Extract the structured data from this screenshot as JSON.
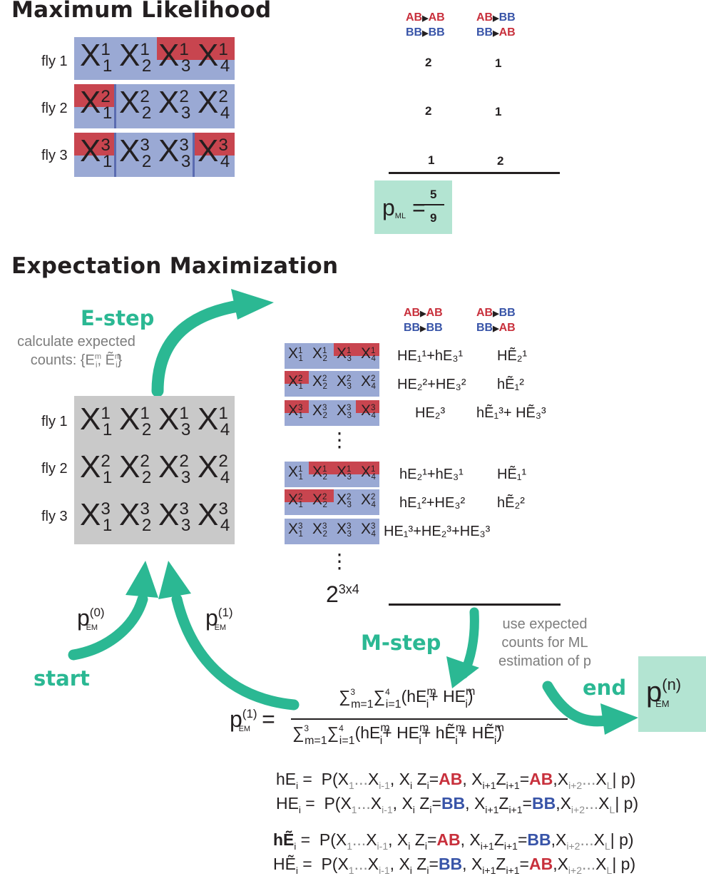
{
  "ml": {
    "title": "Maximum Likelihood",
    "flies": [
      "fly 1",
      "fly 2",
      "fly 3"
    ],
    "header_col1": {
      "line1_a": "AB",
      "line1_b": "AB",
      "line2_a": "BB",
      "line2_b": "BB"
    },
    "header_col2": {
      "line1_a": "AB",
      "line1_b": "BB",
      "line2_a": "BB",
      "line2_b": "AB"
    },
    "counts": [
      [
        "2",
        "1"
      ],
      [
        "2",
        "1"
      ],
      [
        "1",
        "2"
      ]
    ],
    "p_label": "p",
    "p_sub": "ML",
    "numerator": "5",
    "denominator": "9"
  },
  "em": {
    "title": "Expectation Maximization",
    "estep_label": "E-step",
    "estep_note_line1": "calculate expected",
    "estep_note_line2": "counts: {E",
    "mstep_label": "M-step",
    "mstep_note": [
      "use expected",
      "counts for ML",
      "estimation of p"
    ],
    "start_label": "start",
    "end_label": "end",
    "total_combos": "2",
    "total_combos_exp": "3x4",
    "p0": {
      "base": "p",
      "sup": "(0)",
      "sub": "EM"
    },
    "p1": {
      "base": "p",
      "sup": "(1)",
      "sub": "EM"
    },
    "pn": {
      "base": "p",
      "sup": "(n)",
      "sub": "EM"
    },
    "vdots": "⋮",
    "rows": [
      {
        "e1": "HE₁¹+hE₃¹",
        "e2": "HẼ₂¹"
      },
      {
        "e1": "HE₂²+HE₃²",
        "e2": "hẼ₁²"
      },
      {
        "e1": "HE₂³",
        "e2": "hẼ₁³+ HẼ₃³"
      },
      {
        "e1": "hE₂¹+hE₃¹",
        "e2": "HẼ₁¹"
      },
      {
        "e1": "hE₁²+HE₃²",
        "e2": "hẼ₂²"
      },
      {
        "e1": "HE₁³+HE₂³+HE₃³",
        "e2": ""
      }
    ]
  },
  "defs": [
    {
      "lhs": "hE",
      "mid1": "AB",
      "mid2": "AB"
    },
    {
      "lhs": "HE",
      "mid1": "BB",
      "mid2": "BB"
    },
    {
      "lhs": "hẼ",
      "mid1": "AB",
      "mid2": "BB"
    },
    {
      "lhs": "HẼ",
      "mid1": "BB",
      "mid2": "AB"
    }
  ],
  "colors": {
    "teal": "#2bb893",
    "teal_box": "#b3e4d2",
    "blue": "#9aa9d4",
    "red": "#c8454f",
    "gray": "#c9c9c9"
  }
}
